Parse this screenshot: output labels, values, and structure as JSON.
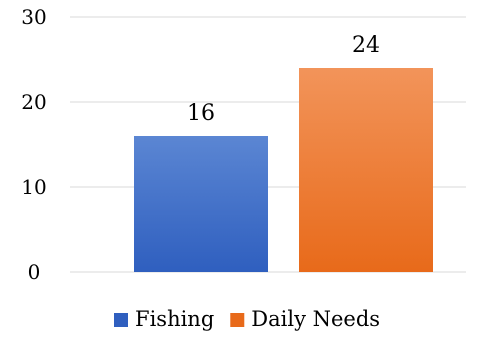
{
  "chart_data": {
    "type": "bar",
    "title": "",
    "xlabel": "",
    "ylabel": "",
    "categories": [
      "Fishing",
      "Daily Needs"
    ],
    "values": [
      16,
      24
    ],
    "ylim": [
      0,
      30
    ],
    "yticks": [
      0,
      10,
      20,
      30
    ],
    "grid": true,
    "legend": {
      "placement": "bottom-center",
      "entries": [
        "Fishing",
        "Daily Needs"
      ]
    },
    "series_colors": {
      "Fishing": {
        "top": "#5b86d3",
        "bottom": "#2f5fbf"
      },
      "Daily Needs": {
        "top": "#f2945a",
        "bottom": "#e86a1a"
      }
    },
    "show_data_labels": true
  }
}
